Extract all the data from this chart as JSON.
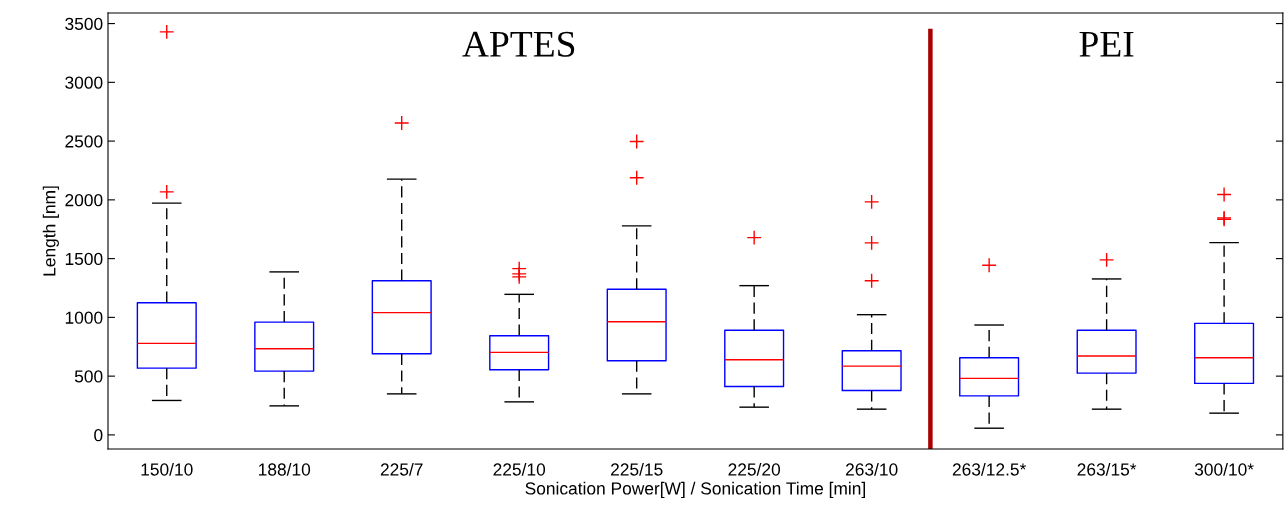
{
  "chart_data": {
    "type": "box",
    "xlabel": "Sonication Power[W] / Sonication Time [min]",
    "ylabel": "Length [nm]",
    "categories": [
      "150/10",
      "188/10",
      "225/7",
      "225/10",
      "225/15",
      "225/20",
      "263/10",
      "263/12.5*",
      "263/15*",
      "300/10*"
    ],
    "series": [
      {
        "color": "#0000ff",
        "boxes": [
          {
            "low": 293,
            "q1": 568,
            "median": 779,
            "q3": 1125,
            "high": 1972,
            "outliers": [
              2068,
              3429
            ]
          },
          {
            "low": 247,
            "q1": 543,
            "median": 733,
            "q3": 960,
            "high": 1387
          },
          {
            "low": 349,
            "q1": 690,
            "median": 1040,
            "q3": 1312,
            "high": 2176,
            "outliers": [
              2654
            ]
          },
          {
            "low": 281,
            "q1": 554,
            "median": 702,
            "q3": 844,
            "high": 1196,
            "outliers": [
              1345,
              1370,
              1415
            ]
          },
          {
            "low": 349,
            "q1": 631,
            "median": 963,
            "q3": 1239,
            "high": 1779,
            "outliers": [
              2188,
              2497
            ]
          },
          {
            "low": 236,
            "q1": 412,
            "median": 639,
            "q3": 890,
            "high": 1270,
            "outliers": [
              1679
            ]
          },
          {
            "low": 219,
            "q1": 378,
            "median": 585,
            "q3": 716,
            "high": 1023,
            "outliers": [
              1312,
              1634,
              1983
            ]
          },
          {
            "low": 57,
            "q1": 332,
            "median": 481,
            "q3": 656,
            "high": 935,
            "outliers": [
              1444
            ]
          },
          {
            "low": 219,
            "q1": 526,
            "median": 671,
            "q3": 890,
            "high": 1327,
            "outliers": [
              1489
            ]
          },
          {
            "low": 185,
            "q1": 438,
            "median": 656,
            "q3": 949,
            "high": 1636,
            "outliers": [
              1835,
              1847,
              2045
            ]
          }
        ]
      }
    ],
    "annotations": [
      "APTES",
      "PEI"
    ],
    "ylim": [
      -120,
      3590
    ],
    "yticks": [
      0,
      500,
      1000,
      1500,
      2000,
      2500,
      3000,
      3500
    ],
    "grid": false,
    "legend": false,
    "marker": "cross"
  }
}
